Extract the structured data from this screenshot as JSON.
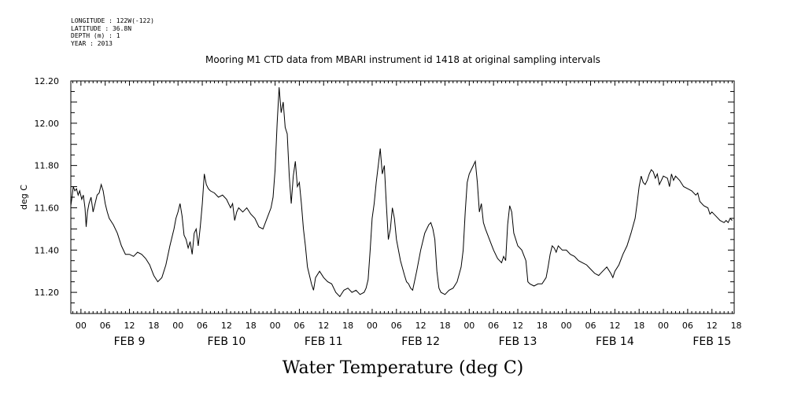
{
  "header": {
    "longitude": "LONGITUDE : 122W(-122)",
    "latitude": "LATITUDE : 36.8N",
    "depth": "DEPTH (m) : 1",
    "year": "YEAR : 2013"
  },
  "chart_data": {
    "type": "line",
    "title": "Mooring M1 CTD data from MBARI instrument id 1418 at original sampling intervals",
    "xlabel": "Water Temperature (deg C)",
    "ylabel": "deg C",
    "ylim": [
      11.1,
      12.2
    ],
    "y_ticks": [
      "11.20",
      "11.40",
      "11.60",
      "11.80",
      "12.00",
      "12.20"
    ],
    "hour_ticks": [
      "00",
      "06",
      "12",
      "18",
      "00",
      "06",
      "12",
      "18",
      "00",
      "06",
      "12",
      "18",
      "00",
      "06",
      "12",
      "18",
      "00",
      "06",
      "12",
      "18",
      "00",
      "06",
      "12",
      "18",
      "00",
      "06",
      "12",
      "18"
    ],
    "date_labels": [
      "FEB  9",
      "FEB 10",
      "FEB 11",
      "FEB 12",
      "FEB 13",
      "FEB 14",
      "FEB 15"
    ],
    "x_units": "hours since FEB 9 00:00",
    "xlim": [
      -2.5,
      161.5
    ],
    "grid": false,
    "series": [
      {
        "values": [
          [
            -2.5,
            11.61
          ],
          [
            -2.2,
            11.65
          ],
          [
            -1.9,
            11.7
          ],
          [
            -1.5,
            11.68
          ],
          [
            -1.1,
            11.69
          ],
          [
            -0.7,
            11.66
          ],
          [
            -0.3,
            11.68
          ],
          [
            0.2,
            11.64
          ],
          [
            0.6,
            11.66
          ],
          [
            1.0,
            11.6
          ],
          [
            1.3,
            11.51
          ],
          [
            1.6,
            11.58
          ],
          [
            2.0,
            11.62
          ],
          [
            2.5,
            11.65
          ],
          [
            3.0,
            11.58
          ],
          [
            3.5,
            11.62
          ],
          [
            4.0,
            11.66
          ],
          [
            4.5,
            11.67
          ],
          [
            5.0,
            11.71
          ],
          [
            5.5,
            11.68
          ],
          [
            6.0,
            11.62
          ],
          [
            6.5,
            11.58
          ],
          [
            7.0,
            11.55
          ],
          [
            8.0,
            11.52
          ],
          [
            9.0,
            11.48
          ],
          [
            10.0,
            11.42
          ],
          [
            11.0,
            11.38
          ],
          [
            12.0,
            11.38
          ],
          [
            13.0,
            11.37
          ],
          [
            14.0,
            11.39
          ],
          [
            15.0,
            11.38
          ],
          [
            16.0,
            11.36
          ],
          [
            17.0,
            11.33
          ],
          [
            18.0,
            11.28
          ],
          [
            19.0,
            11.25
          ],
          [
            20.0,
            11.27
          ],
          [
            21.0,
            11.33
          ],
          [
            22.0,
            11.42
          ],
          [
            23.0,
            11.5
          ],
          [
            23.5,
            11.55
          ],
          [
            24.0,
            11.58
          ],
          [
            24.5,
            11.62
          ],
          [
            25.0,
            11.56
          ],
          [
            25.5,
            11.47
          ],
          [
            26.0,
            11.45
          ],
          [
            26.5,
            11.41
          ],
          [
            27.0,
            11.44
          ],
          [
            27.5,
            11.38
          ],
          [
            28.0,
            11.48
          ],
          [
            28.5,
            11.5
          ],
          [
            29.0,
            11.42
          ],
          [
            29.5,
            11.51
          ],
          [
            30.0,
            11.62
          ],
          [
            30.5,
            11.76
          ],
          [
            31.0,
            11.71
          ],
          [
            31.5,
            11.69
          ],
          [
            32.0,
            11.68
          ],
          [
            33.0,
            11.67
          ],
          [
            34.0,
            11.65
          ],
          [
            35.0,
            11.66
          ],
          [
            36.0,
            11.64
          ],
          [
            37.0,
            11.6
          ],
          [
            37.5,
            11.62
          ],
          [
            38.0,
            11.54
          ],
          [
            38.5,
            11.58
          ],
          [
            39.0,
            11.6
          ],
          [
            40.0,
            11.58
          ],
          [
            41.0,
            11.6
          ],
          [
            42.0,
            11.57
          ],
          [
            43.0,
            11.55
          ],
          [
            44.0,
            11.51
          ],
          [
            45.0,
            11.5
          ],
          [
            46.0,
            11.55
          ],
          [
            47.0,
            11.6
          ],
          [
            47.5,
            11.65
          ],
          [
            48.0,
            11.78
          ],
          [
            48.5,
            12.0
          ],
          [
            49.0,
            12.17
          ],
          [
            49.5,
            12.05
          ],
          [
            50.0,
            12.1
          ],
          [
            50.5,
            11.98
          ],
          [
            51.0,
            11.95
          ],
          [
            51.5,
            11.75
          ],
          [
            52.0,
            11.62
          ],
          [
            52.5,
            11.75
          ],
          [
            53.0,
            11.82
          ],
          [
            53.5,
            11.7
          ],
          [
            54.0,
            11.72
          ],
          [
            54.5,
            11.62
          ],
          [
            55.0,
            11.5
          ],
          [
            55.5,
            11.42
          ],
          [
            56.0,
            11.32
          ],
          [
            56.5,
            11.28
          ],
          [
            57.0,
            11.24
          ],
          [
            57.5,
            11.21
          ],
          [
            58.0,
            11.27
          ],
          [
            59.0,
            11.3
          ],
          [
            60.0,
            11.27
          ],
          [
            61.0,
            11.25
          ],
          [
            62.0,
            11.24
          ],
          [
            63.0,
            11.2
          ],
          [
            64.0,
            11.18
          ],
          [
            65.0,
            11.21
          ],
          [
            66.0,
            11.22
          ],
          [
            67.0,
            11.2
          ],
          [
            68.0,
            11.21
          ],
          [
            69.0,
            11.19
          ],
          [
            70.0,
            11.2
          ],
          [
            70.5,
            11.22
          ],
          [
            71.0,
            11.26
          ],
          [
            71.5,
            11.4
          ],
          [
            72.0,
            11.55
          ],
          [
            72.5,
            11.62
          ],
          [
            73.0,
            11.72
          ],
          [
            73.5,
            11.8
          ],
          [
            74.0,
            11.88
          ],
          [
            74.5,
            11.76
          ],
          [
            75.0,
            11.8
          ],
          [
            75.5,
            11.62
          ],
          [
            76.0,
            11.45
          ],
          [
            76.5,
            11.5
          ],
          [
            77.0,
            11.6
          ],
          [
            77.5,
            11.55
          ],
          [
            78.0,
            11.45
          ],
          [
            79.0,
            11.35
          ],
          [
            80.0,
            11.28
          ],
          [
            80.5,
            11.25
          ],
          [
            81.0,
            11.24
          ],
          [
            81.5,
            11.22
          ],
          [
            82.0,
            11.21
          ],
          [
            83.0,
            11.3
          ],
          [
            84.0,
            11.4
          ],
          [
            85.0,
            11.48
          ],
          [
            86.0,
            11.52
          ],
          [
            86.5,
            11.53
          ],
          [
            87.0,
            11.5
          ],
          [
            87.5,
            11.45
          ],
          [
            88.0,
            11.3
          ],
          [
            88.5,
            11.22
          ],
          [
            89.0,
            11.2
          ],
          [
            90.0,
            11.19
          ],
          [
            91.0,
            11.21
          ],
          [
            92.0,
            11.22
          ],
          [
            93.0,
            11.25
          ],
          [
            94.0,
            11.32
          ],
          [
            94.5,
            11.4
          ],
          [
            95.0,
            11.58
          ],
          [
            95.5,
            11.72
          ],
          [
            96.0,
            11.76
          ],
          [
            96.5,
            11.78
          ],
          [
            97.0,
            11.8
          ],
          [
            97.5,
            11.82
          ],
          [
            98.0,
            11.72
          ],
          [
            98.5,
            11.58
          ],
          [
            99.0,
            11.62
          ],
          [
            99.5,
            11.53
          ],
          [
            100.0,
            11.5
          ],
          [
            101.0,
            11.45
          ],
          [
            102.0,
            11.4
          ],
          [
            103.0,
            11.36
          ],
          [
            104.0,
            11.34
          ],
          [
            104.5,
            11.37
          ],
          [
            105.0,
            11.35
          ],
          [
            105.5,
            11.52
          ],
          [
            106.0,
            11.61
          ],
          [
            106.5,
            11.58
          ],
          [
            107.0,
            11.48
          ],
          [
            108.0,
            11.42
          ],
          [
            109.0,
            11.4
          ],
          [
            110.0,
            11.35
          ],
          [
            110.5,
            11.25
          ],
          [
            111.0,
            11.24
          ],
          [
            112.0,
            11.23
          ],
          [
            113.0,
            11.24
          ],
          [
            114.0,
            11.24
          ],
          [
            115.0,
            11.27
          ],
          [
            115.5,
            11.32
          ],
          [
            116.0,
            11.38
          ],
          [
            116.5,
            11.42
          ],
          [
            117.0,
            11.41
          ],
          [
            117.5,
            11.39
          ],
          [
            118.0,
            11.42
          ],
          [
            119.0,
            11.4
          ],
          [
            120.0,
            11.4
          ],
          [
            121.0,
            11.38
          ],
          [
            122.0,
            11.37
          ],
          [
            123.0,
            11.35
          ],
          [
            124.0,
            11.34
          ],
          [
            125.0,
            11.33
          ],
          [
            126.0,
            11.31
          ],
          [
            127.0,
            11.29
          ],
          [
            128.0,
            11.28
          ],
          [
            129.0,
            11.3
          ],
          [
            130.0,
            11.32
          ],
          [
            131.0,
            11.29
          ],
          [
            131.5,
            11.27
          ],
          [
            132.0,
            11.3
          ],
          [
            133.0,
            11.33
          ],
          [
            134.0,
            11.38
          ],
          [
            135.0,
            11.42
          ],
          [
            136.0,
            11.48
          ],
          [
            137.0,
            11.55
          ],
          [
            137.5,
            11.62
          ],
          [
            138.0,
            11.7
          ],
          [
            138.5,
            11.75
          ],
          [
            139.0,
            11.72
          ],
          [
            139.5,
            11.71
          ],
          [
            140.0,
            11.73
          ],
          [
            140.5,
            11.76
          ],
          [
            141.0,
            11.78
          ],
          [
            141.5,
            11.77
          ],
          [
            142.0,
            11.74
          ],
          [
            142.5,
            11.76
          ],
          [
            143.0,
            11.71
          ],
          [
            143.5,
            11.73
          ],
          [
            144.0,
            11.75
          ],
          [
            145.0,
            11.74
          ],
          [
            145.5,
            11.7
          ],
          [
            146.0,
            11.76
          ],
          [
            146.5,
            11.73
          ],
          [
            147.0,
            11.75
          ],
          [
            148.0,
            11.73
          ],
          [
            149.0,
            11.7
          ],
          [
            150.0,
            11.69
          ],
          [
            151.0,
            11.68
          ],
          [
            152.0,
            11.66
          ],
          [
            152.5,
            11.67
          ],
          [
            153.0,
            11.63
          ],
          [
            154.0,
            11.61
          ],
          [
            155.0,
            11.6
          ],
          [
            155.5,
            11.57
          ],
          [
            156.0,
            11.58
          ],
          [
            157.0,
            11.56
          ],
          [
            158.0,
            11.54
          ],
          [
            159.0,
            11.53
          ],
          [
            159.5,
            11.54
          ],
          [
            160.0,
            11.53
          ],
          [
            160.5,
            11.55
          ],
          [
            161.0,
            11.54
          ]
        ]
      }
    ]
  }
}
